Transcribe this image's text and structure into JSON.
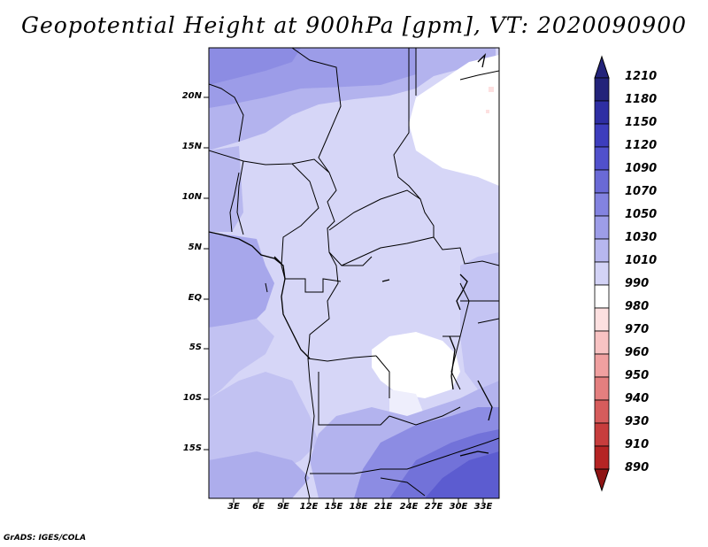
{
  "title": "Geopotential Height at 900hPa [gpm], VT: 2020090900",
  "credit": "GrADS: IGES/COLA",
  "lat_labels": [
    "20N",
    "15N",
    "10N",
    "5N",
    "EQ",
    "5S",
    "10S",
    "15S"
  ],
  "lon_labels": [
    "3E",
    "6E",
    "9E",
    "12E",
    "15E",
    "18E",
    "21E",
    "24E",
    "27E",
    "30E",
    "33E"
  ],
  "colorbar": {
    "labels": [
      "1210",
      "1180",
      "1150",
      "1120",
      "1090",
      "1070",
      "1050",
      "1030",
      "1010",
      "990",
      "980",
      "970",
      "960",
      "950",
      "940",
      "930",
      "910",
      "890"
    ],
    "colors": [
      "#23237a",
      "#2e2ea3",
      "#3d3dbd",
      "#5151cc",
      "#6a6ad6",
      "#8383e0",
      "#9d9de8",
      "#b7b7ef",
      "#d3d3f6",
      "#ffffff",
      "#fde0e0",
      "#f8c3c3",
      "#f0a0a0",
      "#e47f7f",
      "#d65c5c",
      "#c73d3d",
      "#b52424",
      "#8f1515"
    ]
  }
}
